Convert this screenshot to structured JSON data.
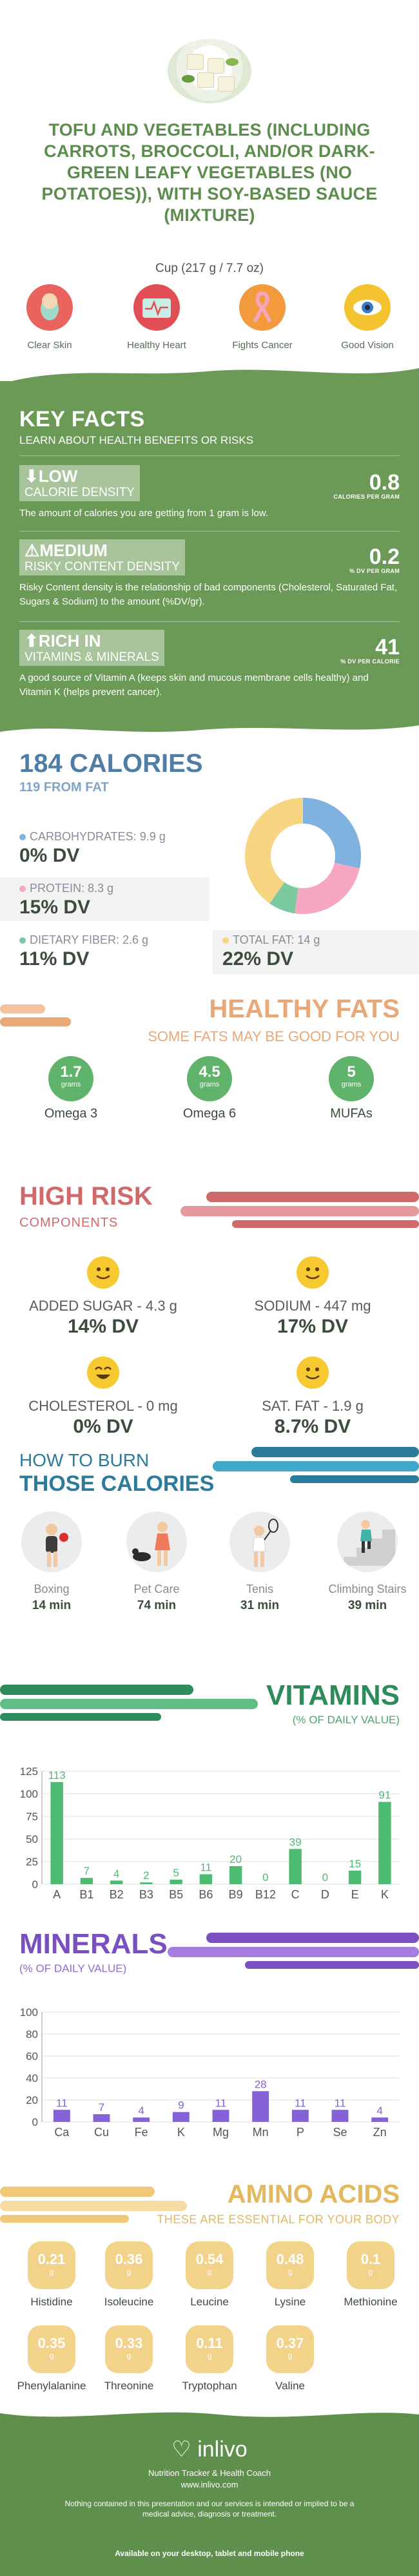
{
  "header": {
    "title": "TOFU AND VEGETABLES (INCLUDING CARROTS, BROCCOLI, AND/OR DARK-GREEN LEAFY VEGETABLES (NO POTATOES)), WITH SOY-BASED SAUCE (MIXTURE)",
    "serving": "Cup (217 g / 7.7 oz)"
  },
  "benefits": [
    {
      "label": "Clear Skin",
      "icon": "face-icon",
      "color": "#e9635f"
    },
    {
      "label": "Healthy Heart",
      "icon": "heartbeat-icon",
      "color": "#e24e55"
    },
    {
      "label": "Fights Cancer",
      "icon": "ribbon-icon",
      "color": "#f29a3c"
    },
    {
      "label": "Good Vision",
      "icon": "eye-icon",
      "color": "#f4c430"
    }
  ],
  "key_facts": {
    "title": "KEY FACTS",
    "subtitle": "LEARN ABOUT HEALTH BENEFITS OR RISKS",
    "items": [
      {
        "level": "LOW",
        "name": "CALORIE DENSITY",
        "value": "0.8",
        "unit": "CALORIES PER GRAM",
        "desc": "The amount of calories you are getting from 1 gram is low."
      },
      {
        "level": "MEDIUM",
        "name": "RISKY CONTENT DENSITY",
        "value": "0.2",
        "unit": "% DV PER GRAM",
        "desc": "Risky Content density is the relationship of bad components (Cholesterol, Saturated Fat, Sugars & Sodium) to the amount (%DV/gr)."
      },
      {
        "level": "RICH  IN",
        "name": "VITAMINS & MINERALS",
        "value": "41",
        "unit": "% DV PER CALORIE",
        "desc": "A good source of Vitamin A (keeps skin and mucous membrane cells healthy) and Vitamin K (helps prevent cancer)."
      }
    ]
  },
  "calories": {
    "title": "184 CALORIES",
    "from_fat": "119 FROM FAT",
    "carbs": {
      "label": "CARBOHYDRATES: 9.9 g",
      "dv": "0% DV",
      "color": "#7fb2de"
    },
    "protein": {
      "label": "PROTEIN: 8.3 g",
      "dv": "15% DV",
      "color": "#f7a7c4"
    },
    "fiber": {
      "label": "DIETARY FIBER: 2.6 g",
      "dv": "11% DV",
      "color": "#7ccba0"
    },
    "fat": {
      "label": "TOTAL FAT: 14 g",
      "dv": "22% DV",
      "color": "#f8d583"
    }
  },
  "chart_data": [
    {
      "type": "pie",
      "categories": [
        "Carbohydrates",
        "Protein",
        "Dietary Fiber",
        "Total Fat"
      ],
      "values": [
        9.9,
        8.3,
        2.6,
        14
      ],
      "colors": [
        "#7fb2de",
        "#f7a7c4",
        "#7ccba0",
        "#f8d583"
      ]
    },
    {
      "type": "bar",
      "categories": [
        "A",
        "B1",
        "B2",
        "B3",
        "B5",
        "B6",
        "B9",
        "B12",
        "C",
        "D",
        "E",
        "K"
      ],
      "values": [
        113,
        7,
        4,
        2,
        5,
        11,
        20,
        0,
        39,
        0,
        15,
        91
      ],
      "ylim": [
        0,
        125
      ],
      "yticks": [
        0,
        25,
        50,
        75,
        100,
        125
      ],
      "color": "#4dbb72"
    },
    {
      "type": "bar",
      "categories": [
        "Ca",
        "Cu",
        "Fe",
        "K",
        "Mg",
        "Mn",
        "P",
        "Se",
        "Zn"
      ],
      "values": [
        11,
        7,
        4,
        9,
        11,
        28,
        11,
        11,
        4
      ],
      "ylim": [
        0,
        100
      ],
      "yticks": [
        0,
        20,
        40,
        60,
        80,
        100
      ],
      "color": "#8462d6"
    }
  ],
  "healthy_fats": {
    "title": "HEALTHY FATS",
    "subtitle": "SOME FATS MAY BE GOOD FOR YOU",
    "unit": "grams",
    "items": [
      {
        "value": "1.7",
        "label": "Omega 3"
      },
      {
        "value": "4.5",
        "label": "Omega 6"
      },
      {
        "value": "5",
        "label": "MUFAs"
      }
    ]
  },
  "high_risk": {
    "title": "HIGH RISK",
    "subtitle": "COMPONENTS",
    "items": [
      {
        "label": "ADDED SUGAR - 4.3 g",
        "dv": "14% DV"
      },
      {
        "label": "SODIUM - 447 mg",
        "dv": "17% DV"
      },
      {
        "label": "CHOLESTEROL - 0 mg",
        "dv": "0% DV"
      },
      {
        "label": "SAT. FAT - 1.9 g",
        "dv": "8.7% DV"
      }
    ]
  },
  "burn": {
    "line1": "HOW TO BURN",
    "line2": "THOSE CALORIES",
    "items": [
      {
        "label": "Boxing",
        "time": "14 min"
      },
      {
        "label": "Pet Care",
        "time": "74 min"
      },
      {
        "label": "Tenis",
        "time": "31 min"
      },
      {
        "label": "Climbing Stairs",
        "time": "39 min"
      }
    ]
  },
  "vitamins": {
    "title": "VITAMINS",
    "subtitle": "(% OF DAILY VALUE)"
  },
  "minerals": {
    "title": "MINERALS",
    "subtitle": "(% OF DAILY VALUE)"
  },
  "amino": {
    "title": "AMINO ACIDS",
    "subtitle": "THESE ARE ESSENTIAL FOR YOUR BODY",
    "unit": "g",
    "items": [
      {
        "value": "0.21",
        "label": "Histidine"
      },
      {
        "value": "0.36",
        "label": "Isoleucine"
      },
      {
        "value": "0.54",
        "label": "Leucine"
      },
      {
        "value": "0.48",
        "label": "Lysine"
      },
      {
        "value": "0.1",
        "label": "Methionine"
      },
      {
        "value": "0.35",
        "label": "Phenylalanine"
      },
      {
        "value": "0.33",
        "label": "Threonine"
      },
      {
        "value": "0.11",
        "label": "Tryptophan"
      },
      {
        "value": "0.37",
        "label": "Valine"
      }
    ]
  },
  "footer": {
    "logo": "inlivo",
    "tagline1": "Nutrition Tracker & Health Coach",
    "tagline2": "www.inlivo.com",
    "disclaimer": "Nothing contained in this presentation and our services is intended or implied to be a medical advice, diagnosis or treatment.",
    "available": "Available on your desktop, tablet and mobile phone"
  }
}
